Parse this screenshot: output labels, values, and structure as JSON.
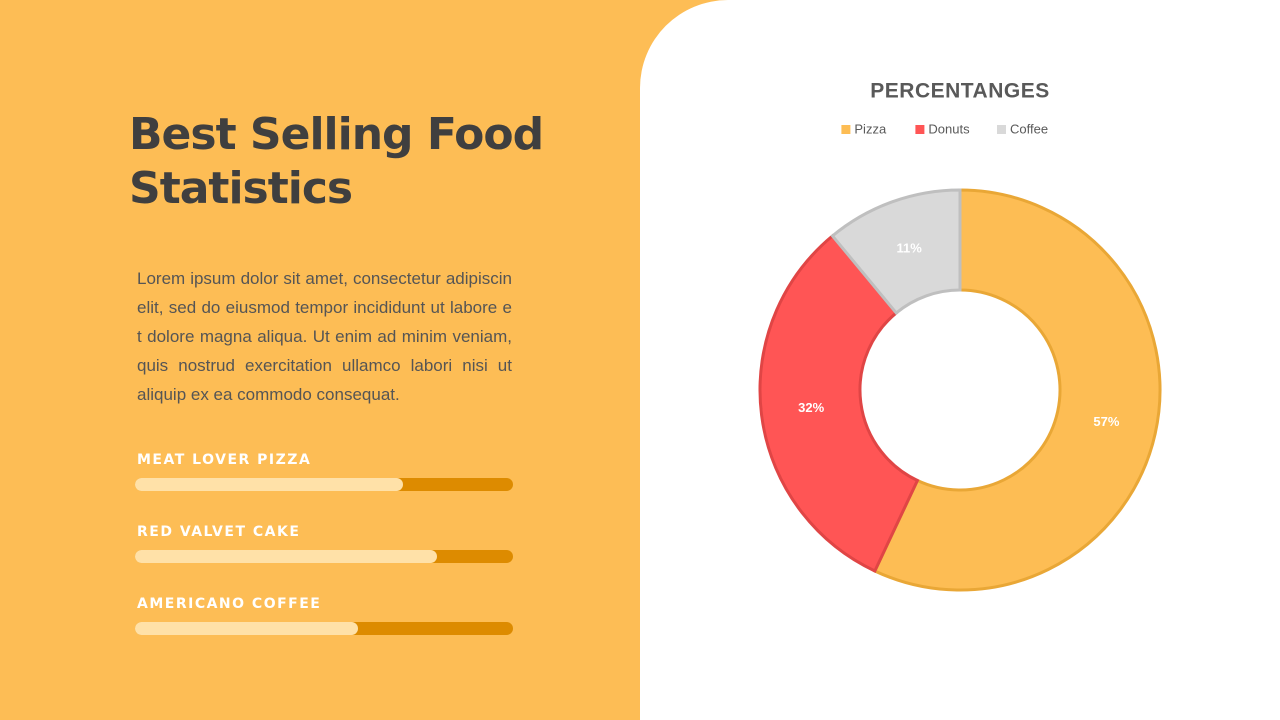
{
  "slide": {
    "title": "Best Selling Food Statistics",
    "body": "Lorem ipsum dolor sit amet, consectetur adipiscin elit, sed do eiusmod tempor incididunt ut labore e t dolore magna aliqua. Ut enim ad minim veniam, quis nostrud exercitation ullamco labori nisi ut aliquip ex ea commodo consequat."
  },
  "chart_data": [
    {
      "type": "donut",
      "title": "PERCENTANGES",
      "legend": "top",
      "series": [
        {
          "name": "Pizza",
          "color": "#FDBD54",
          "values": [
            57
          ],
          "value_labels": [
            "57%"
          ]
        },
        {
          "name": "Donuts",
          "color": "#FF5555",
          "values": [
            32
          ],
          "value_labels": [
            "32%"
          ]
        },
        {
          "name": "Coffee",
          "color": "#D9D9D9",
          "values": [
            11
          ],
          "value_labels": [
            "11%"
          ]
        }
      ]
    },
    {
      "type": "progress",
      "categories": [
        "MEAT LOVER PIZZA",
        "RED VALVET CAKE",
        "AMERICANO COFFEE"
      ],
      "values": [
        71,
        80,
        59
      ],
      "xlim": [
        0,
        100
      ],
      "color": "#FFE1A8",
      "track_color": "#DD8B00"
    }
  ]
}
